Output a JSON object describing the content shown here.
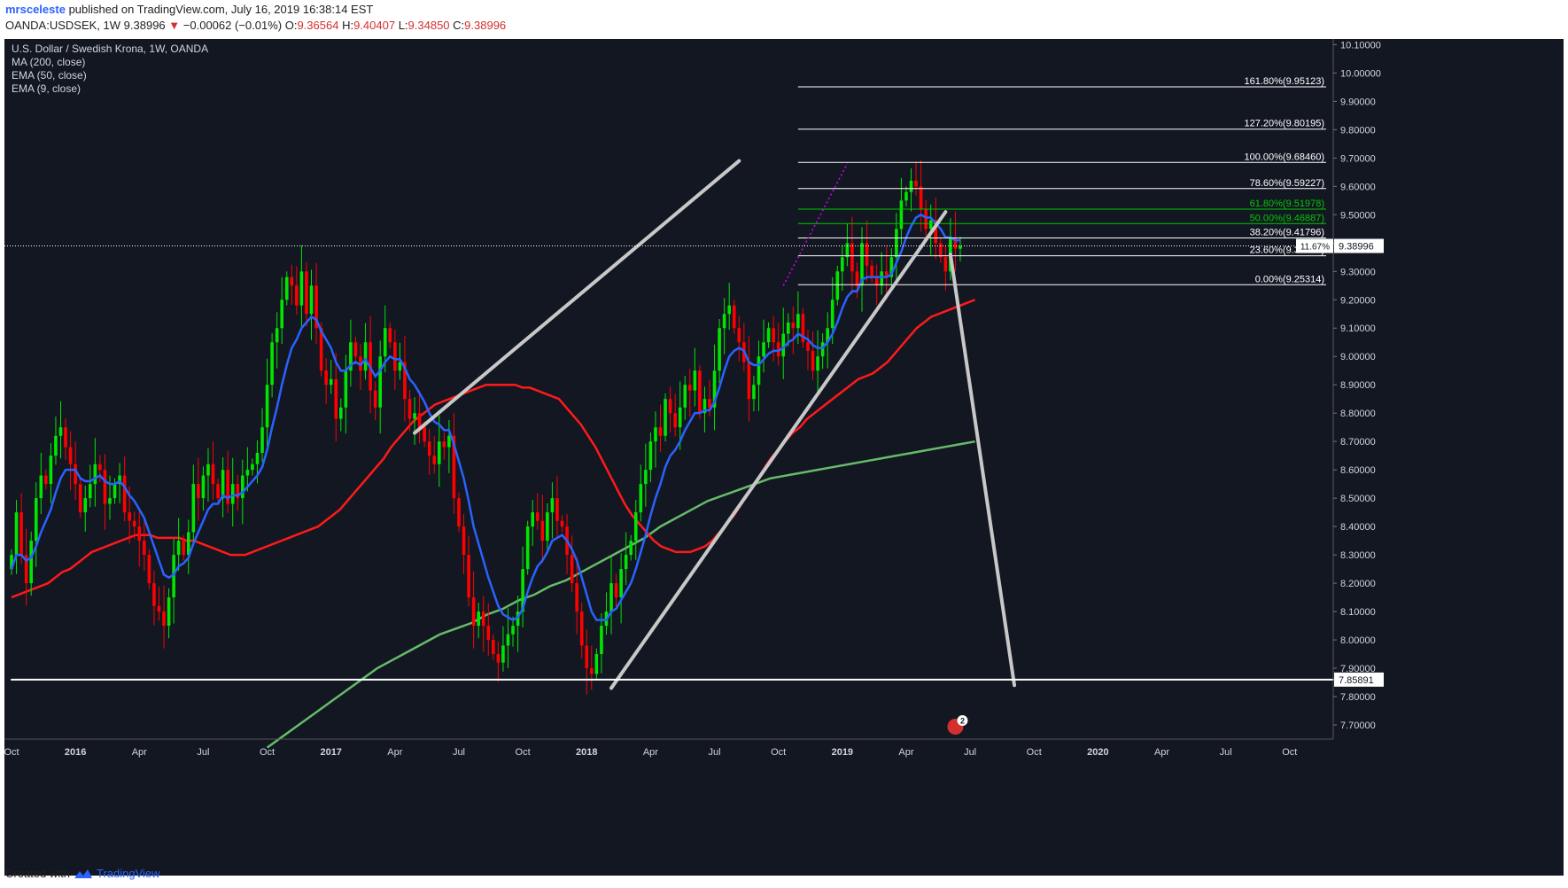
{
  "header": {
    "author": "mrsceleste",
    "published_text": "published on TradingView.com, July 16, 2019 16:38:14 EST",
    "symbol": "OANDA:USDSEK, 1W",
    "price": "9.38996",
    "change_arrow": "▼",
    "change": "−0.00062 (−0.01%)",
    "o_label": "O:",
    "o_value": "9.36564",
    "h_label": "H:",
    "h_value": "9.40407",
    "l_label": "L:",
    "l_value": "9.34850",
    "c_label": "C:",
    "c_value": "9.38996"
  },
  "legend": {
    "title": "U.S. Dollar / Swedish Krona, 1W, OANDA",
    "ma200": "MA (200, close)",
    "ema50": "EMA (50, close)",
    "ema9": "EMA (9, close)"
  },
  "footer": {
    "created_with": "Created with",
    "brand": "TradingView"
  },
  "colors": {
    "background": "#131722",
    "up": "#00e600",
    "down": "#ff0000",
    "ma200": "#66bb6a",
    "ema50": "#ff1a1a",
    "ema9": "#2962ff",
    "trendline": "#c8c8c8",
    "fib_white": "#ffffff",
    "fib_green": "#00c800",
    "axis_text": "#d1d4dc"
  },
  "chart_data": {
    "type": "candlestick",
    "ylim": [
      7.65,
      10.12
    ],
    "y_ticks": [
      "10.10000",
      "10.00000",
      "9.90000",
      "9.80000",
      "9.70000",
      "9.60000",
      "9.50000",
      "9.40000",
      "9.30000",
      "9.20000",
      "9.10000",
      "9.00000",
      "8.90000",
      "8.80000",
      "8.70000",
      "8.60000",
      "8.50000",
      "8.40000",
      "8.30000",
      "8.20000",
      "8.10000",
      "8.00000",
      "7.90000",
      "7.80000",
      "7.70000"
    ],
    "x_ticks": [
      "Oct",
      "2016",
      "Apr",
      "Jul",
      "Oct",
      "2017",
      "Apr",
      "Jul",
      "Oct",
      "2018",
      "Apr",
      "Jul",
      "Oct",
      "2019",
      "Apr",
      "Jul",
      "Oct",
      "2020",
      "Apr",
      "Jul",
      "Oct"
    ],
    "x_tick_weeks": [
      0,
      13,
      26,
      39,
      52,
      65,
      78,
      91,
      104,
      117,
      130,
      143,
      156,
      169,
      182,
      195,
      208,
      221,
      234,
      247,
      260
    ],
    "last_week": 196,
    "closes_weekly": [
      8.3,
      8.45,
      8.3,
      8.2,
      8.35,
      8.5,
      8.58,
      8.55,
      8.65,
      8.72,
      8.75,
      8.68,
      8.62,
      8.55,
      8.45,
      8.5,
      8.55,
      8.62,
      8.6,
      8.48,
      8.5,
      8.55,
      8.58,
      8.45,
      8.42,
      8.4,
      8.35,
      8.3,
      8.2,
      8.12,
      8.1,
      8.05,
      8.15,
      8.3,
      8.35,
      8.3,
      8.38,
      8.55,
      8.5,
      8.58,
      8.62,
      8.55,
      8.5,
      8.6,
      8.48,
      8.55,
      8.5,
      8.58,
      8.6,
      8.62,
      8.66,
      8.75,
      8.9,
      9.05,
      9.1,
      9.2,
      9.28,
      9.25,
      9.18,
      9.3,
      9.15,
      9.25,
      9.1,
      8.95,
      8.9,
      8.92,
      8.78,
      8.82,
      8.95,
      9.05,
      9.0,
      8.95,
      9.05,
      8.88,
      8.82,
      9.0,
      9.1,
      9.05,
      8.95,
      8.98,
      8.85,
      8.78,
      8.8,
      8.75,
      8.7,
      8.65,
      8.62,
      8.7,
      8.68,
      8.72,
      8.5,
      8.4,
      8.3,
      8.15,
      8.05,
      8.1,
      8.05,
      8.0,
      7.95,
      7.92,
      7.98,
      8.02,
      8.05,
      8.1,
      8.25,
      8.4,
      8.45,
      8.42,
      8.35,
      8.45,
      8.5,
      8.42,
      8.4,
      8.3,
      8.2,
      8.1,
      7.98,
      7.9,
      7.88,
      7.95,
      8.05,
      8.1,
      8.2,
      8.15,
      8.25,
      8.3,
      8.35,
      8.45,
      8.55,
      8.6,
      8.7,
      8.75,
      8.72,
      8.85,
      8.8,
      8.75,
      8.82,
      8.9,
      8.88,
      8.95,
      8.8,
      8.85,
      8.82,
      8.95,
      9.1,
      9.15,
      9.18,
      9.1,
      9.05,
      8.98,
      8.85,
      8.9,
      9.0,
      9.05,
      9.1,
      9.05,
      9.0,
      9.08,
      9.12,
      9.1,
      9.15,
      9.05,
      9.02,
      8.95,
      9.0,
      9.05,
      9.1,
      9.2,
      9.3,
      9.35,
      9.4,
      9.3,
      9.25,
      9.4,
      9.32,
      9.28,
      9.25,
      9.3,
      9.28,
      9.35,
      9.45,
      9.55,
      9.58,
      9.62,
      9.6,
      9.52,
      9.45,
      9.48,
      9.4,
      9.35,
      9.3,
      9.42,
      9.38,
      9.39
    ],
    "ema9_weekly": [
      8.25,
      8.3,
      8.3,
      8.28,
      8.29,
      8.33,
      8.38,
      8.42,
      8.46,
      8.52,
      8.57,
      8.6,
      8.6,
      8.6,
      8.57,
      8.56,
      8.56,
      8.57,
      8.58,
      8.56,
      8.55,
      8.55,
      8.56,
      8.54,
      8.51,
      8.49,
      8.46,
      8.43,
      8.38,
      8.33,
      8.28,
      8.23,
      8.22,
      8.23,
      8.26,
      8.27,
      8.29,
      8.34,
      8.38,
      8.42,
      8.46,
      8.48,
      8.48,
      8.51,
      8.5,
      8.51,
      8.51,
      8.52,
      8.54,
      8.56,
      8.58,
      8.61,
      8.67,
      8.75,
      8.82,
      8.9,
      8.97,
      9.03,
      9.06,
      9.1,
      9.12,
      9.14,
      9.13,
      9.09,
      9.06,
      9.03,
      8.98,
      8.95,
      8.95,
      8.97,
      8.98,
      8.97,
      8.99,
      8.96,
      8.93,
      8.95,
      8.98,
      9.0,
      8.99,
      8.99,
      8.96,
      8.92,
      8.9,
      8.87,
      8.84,
      8.8,
      8.77,
      8.76,
      8.74,
      8.74,
      8.69,
      8.63,
      8.57,
      8.49,
      8.4,
      8.34,
      8.28,
      8.22,
      8.17,
      8.12,
      8.09,
      8.08,
      8.07,
      8.08,
      8.11,
      8.17,
      8.22,
      8.26,
      8.28,
      8.31,
      8.35,
      8.36,
      8.37,
      8.35,
      8.32,
      8.28,
      8.22,
      8.16,
      8.1,
      8.07,
      8.07,
      8.07,
      8.1,
      8.11,
      8.14,
      8.17,
      8.2,
      8.25,
      8.31,
      8.37,
      8.44,
      8.5,
      8.55,
      8.61,
      8.65,
      8.67,
      8.7,
      8.74,
      8.77,
      8.8,
      8.8,
      8.81,
      8.81,
      8.84,
      8.89,
      8.95,
      9.0,
      9.02,
      9.03,
      9.02,
      8.98,
      8.97,
      8.97,
      8.99,
      9.01,
      9.02,
      9.02,
      9.03,
      9.05,
      9.06,
      9.08,
      9.07,
      9.06,
      9.04,
      9.03,
      9.03,
      9.05,
      9.08,
      9.12,
      9.17,
      9.21,
      9.23,
      9.23,
      9.27,
      9.28,
      9.28,
      9.28,
      9.28,
      9.28,
      9.29,
      9.33,
      9.37,
      9.42,
      9.46,
      9.49,
      9.5,
      9.49,
      9.49,
      9.47,
      9.45,
      9.42,
      9.42,
      9.41,
      9.41
    ],
    "ema50_weekly": [
      8.15,
      8.16,
      8.17,
      8.18,
      8.19,
      8.2,
      8.22,
      8.24,
      8.25,
      8.27,
      8.29,
      8.31,
      8.32,
      8.33,
      8.34,
      8.35,
      8.36,
      8.37,
      8.37,
      8.37,
      8.36,
      8.36,
      8.36,
      8.36,
      8.35,
      8.35,
      8.34,
      8.33,
      8.32,
      8.31,
      8.3,
      8.3,
      8.3,
      8.31,
      8.32,
      8.33,
      8.34,
      8.35,
      8.36,
      8.37,
      8.38,
      8.39,
      8.4,
      8.42,
      8.44,
      8.46,
      8.49,
      8.52,
      8.55,
      8.58,
      8.61,
      8.64,
      8.68,
      8.71,
      8.74,
      8.77,
      8.79,
      8.81,
      8.83,
      8.84,
      8.85,
      8.86,
      8.87,
      8.88,
      8.89,
      8.9,
      8.9,
      8.9,
      8.9,
      8.9,
      8.89,
      8.89,
      8.88,
      8.87,
      8.86,
      8.85,
      8.82,
      8.79,
      8.76,
      8.72,
      8.68,
      8.63,
      8.58,
      8.53,
      8.48,
      8.44,
      8.41,
      8.38,
      8.35,
      8.33,
      8.32,
      8.31,
      8.31,
      8.31,
      8.32,
      8.33,
      8.35,
      8.38,
      8.41,
      8.44,
      8.48,
      8.52,
      8.56,
      8.6,
      8.64,
      8.67,
      8.7,
      8.73,
      8.75,
      8.78,
      8.8,
      8.82,
      8.84,
      8.86,
      8.88,
      8.9,
      8.92,
      8.93,
      8.94,
      8.96,
      8.98,
      9.01,
      9.04,
      9.07,
      9.1,
      9.12,
      9.14,
      9.15,
      9.16,
      9.17,
      9.18,
      9.19,
      9.2
    ],
    "ema50_start_week": 0,
    "ma200_weekly": [
      7.62,
      7.66,
      7.7,
      7.74,
      7.78,
      7.82,
      7.86,
      7.9,
      7.93,
      7.96,
      7.99,
      8.02,
      8.04,
      8.06,
      8.09,
      8.11,
      8.14,
      8.16,
      8.19,
      8.21,
      8.24,
      8.27,
      8.3,
      8.33,
      8.36,
      8.4,
      8.43,
      8.46,
      8.49,
      8.51,
      8.53,
      8.55,
      8.57,
      8.58,
      8.59,
      8.6,
      8.61,
      8.62,
      8.63,
      8.64,
      8.65,
      8.66,
      8.67,
      8.68,
      8.69,
      8.7
    ],
    "ma200_start_week": 52,
    "trendlines": [
      {
        "name": "wedge-upper",
        "from": [
          82,
          8.73
        ],
        "to": [
          148,
          9.69
        ]
      },
      {
        "name": "wedge-lower",
        "from": [
          122,
          7.83
        ],
        "to": [
          190,
          9.51
        ]
      },
      {
        "name": "projection",
        "from": [
          191,
          9.36
        ],
        "to": [
          204,
          7.84
        ]
      },
      {
        "name": "support",
        "from": [
          0,
          7.86
        ],
        "to": [
          212,
          7.86
        ]
      }
    ],
    "hline_price_label": "9.38996",
    "hline_pct_label": "11.67%",
    "support_label": "7.85891",
    "fib_levels": [
      {
        "label": "161.80%(9.95123)",
        "value": 9.95123,
        "color": "white"
      },
      {
        "label": "127.20%(9.80195)",
        "value": 9.80195,
        "color": "white"
      },
      {
        "label": "100.00%(9.68460)",
        "value": 9.6846,
        "color": "white"
      },
      {
        "label": "78.60%(9.59227)",
        "value": 9.59227,
        "color": "white"
      },
      {
        "label": "61.80%(9.51978)",
        "value": 9.51978,
        "color": "green"
      },
      {
        "label": "50.00%(9.46887)",
        "value": 9.46887,
        "color": "green"
      },
      {
        "label": "38.20%(9.41796)",
        "value": 9.41796,
        "color": "white"
      },
      {
        "label": "23.60%(9.35497)",
        "value": 9.35497,
        "color": "white"
      },
      {
        "label": "0.00%(9.25314)",
        "value": 9.25314,
        "color": "white"
      }
    ],
    "fib_start_week": 160,
    "event_badge": "2"
  }
}
